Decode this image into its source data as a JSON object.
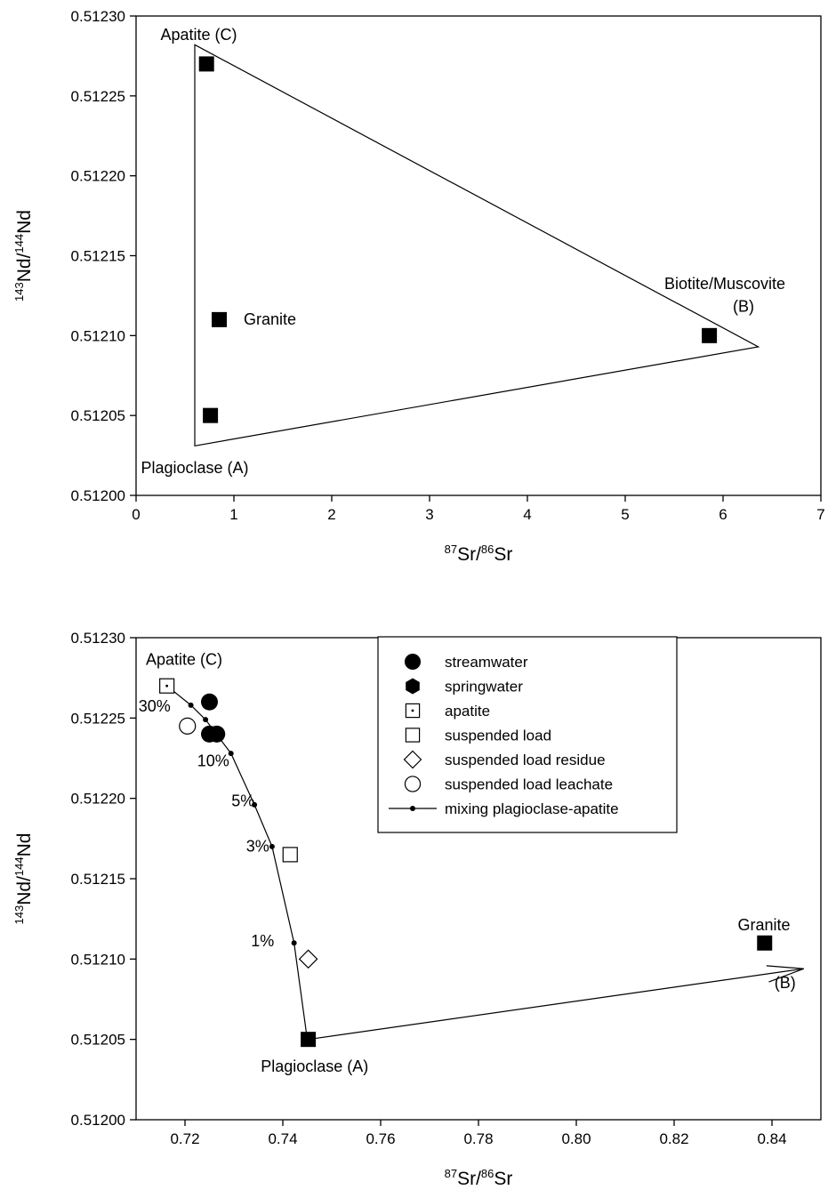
{
  "chart_data": [
    {
      "type": "scatter",
      "xlabel": {
        "sup1": "87",
        "base1": "Sr/",
        "sup2": "86",
        "base2": "Sr"
      },
      "ylabel": {
        "sup1": "143",
        "base1": "Nd/",
        "sup2": "144",
        "base2": "Nd"
      },
      "xlim": [
        0,
        7
      ],
      "ylim": [
        0.512,
        0.5123
      ],
      "xticks": [
        0,
        1,
        2,
        3,
        4,
        5,
        6,
        7
      ],
      "xtick_labels": [
        "0",
        "1",
        "2",
        "3",
        "4",
        "5",
        "6",
        "7"
      ],
      "yticks": [
        0.512,
        0.51205,
        0.5121,
        0.51215,
        0.5122,
        0.51225,
        0.5123
      ],
      "ytick_labels": [
        "0.51200",
        "0.51205",
        "0.51210",
        "0.51215",
        "0.51220",
        "0.51225",
        "0.51230"
      ],
      "points": [
        {
          "x": 0.72,
          "y": 0.51227,
          "label": "Apatite (C)"
        },
        {
          "x": 0.85,
          "y": 0.51211,
          "label": "Granite"
        },
        {
          "x": 0.76,
          "y": 0.51205,
          "label": "Plagioclase (A)"
        },
        {
          "x": 5.86,
          "y": 0.5121,
          "label": "Biotite/Muscovite (B)"
        }
      ],
      "envelope": [
        [
          0.6,
          0.512282
        ],
        [
          6.36,
          0.512093
        ],
        [
          0.6,
          0.512031
        ]
      ],
      "annotations": [
        {
          "text": "Apatite (C)",
          "x": 0.25,
          "y": 0.512285
        },
        {
          "text": "Granite",
          "x": 1.1,
          "y": 0.512107
        },
        {
          "text": "Plagioclase (A)",
          "x": 0.05,
          "y": 0.512014
        },
        {
          "text": "Biotite/Muscovite",
          "x": 5.4,
          "y": 0.512129
        },
        {
          "text": "(B)",
          "x": 6.1,
          "y": 0.512115
        }
      ]
    },
    {
      "type": "scatter",
      "xlabel": {
        "sup1": "87",
        "base1": "Sr/",
        "sup2": "86",
        "base2": "Sr"
      },
      "ylabel": {
        "sup1": "143",
        "base1": "Nd/",
        "sup2": "144",
        "base2": "Nd"
      },
      "xlim": [
        0.71,
        0.85
      ],
      "ylim": [
        0.512,
        0.5123
      ],
      "xticks": [
        0.72,
        0.74,
        0.76,
        0.78,
        0.8,
        0.82,
        0.84
      ],
      "xtick_labels": [
        "0.72",
        "0.74",
        "0.76",
        "0.78",
        "0.80",
        "0.82",
        "0.84"
      ],
      "yticks": [
        0.512,
        0.51205,
        0.5121,
        0.51215,
        0.5122,
        0.51225,
        0.5123
      ],
      "ytick_labels": [
        "0.51200",
        "0.51205",
        "0.51210",
        "0.51215",
        "0.51220",
        "0.51225",
        "0.51230"
      ],
      "legend_placement": "top-center",
      "series": [
        {
          "name": "streamwater",
          "marker": "circle-filled",
          "points": [
            [
              0.725,
              0.51226
            ],
            [
              0.725,
              0.51224
            ],
            [
              0.7265,
              0.51224
            ]
          ]
        },
        {
          "name": "springwater",
          "marker": "hexagon-filled",
          "points": [
            [
              0.7265,
              0.51224
            ]
          ]
        },
        {
          "name": "apatite",
          "marker": "square-dot",
          "points": [
            [
              0.7163,
              0.51227
            ]
          ]
        },
        {
          "name": "suspended load",
          "marker": "square-open",
          "points": [
            [
              0.7415,
              0.512165
            ]
          ]
        },
        {
          "name": "suspended load residue",
          "marker": "diamond-open",
          "points": [
            [
              0.7452,
              0.5121
            ]
          ]
        },
        {
          "name": "suspended load leachate",
          "marker": "circle-open",
          "points": [
            [
              0.7205,
              0.512245
            ]
          ]
        },
        {
          "name": "mixing plagioclase-apatite",
          "marker": "line-dot",
          "points": [
            [
              0.7163,
              0.51227
            ],
            [
              0.7212,
              0.512258
            ],
            [
              0.7242,
              0.512249
            ],
            [
              0.7294,
              0.512228
            ],
            [
              0.7342,
              0.512196
            ],
            [
              0.7378,
              0.51217
            ],
            [
              0.7423,
              0.51211
            ],
            [
              0.745,
              0.51205
            ]
          ]
        }
      ],
      "granite_points": [
        [
          0.7452,
          0.51205
        ],
        [
          0.8385,
          0.51211
        ]
      ],
      "arrow_line": [
        [
          0.7452,
          0.51205
        ],
        [
          0.8465,
          0.512094
        ]
      ],
      "annotations": [
        {
          "text": "Apatite (C)",
          "x": 0.712,
          "y": 0.512283
        },
        {
          "text": "30%",
          "x": 0.7105,
          "y": 0.512254
        },
        {
          "text": "10%",
          "x": 0.7225,
          "y": 0.51222
        },
        {
          "text": "5%",
          "x": 0.7295,
          "y": 0.512195
        },
        {
          "text": "3%",
          "x": 0.7325,
          "y": 0.512167
        },
        {
          "text": "1%",
          "x": 0.7335,
          "y": 0.512108
        },
        {
          "text": "Plagioclase (A)",
          "x": 0.7355,
          "y": 0.51203
        },
        {
          "text": "Granite",
          "x": 0.833,
          "y": 0.512118
        },
        {
          "text": "(B)",
          "x": 0.8405,
          "y": 0.512082
        }
      ]
    }
  ]
}
